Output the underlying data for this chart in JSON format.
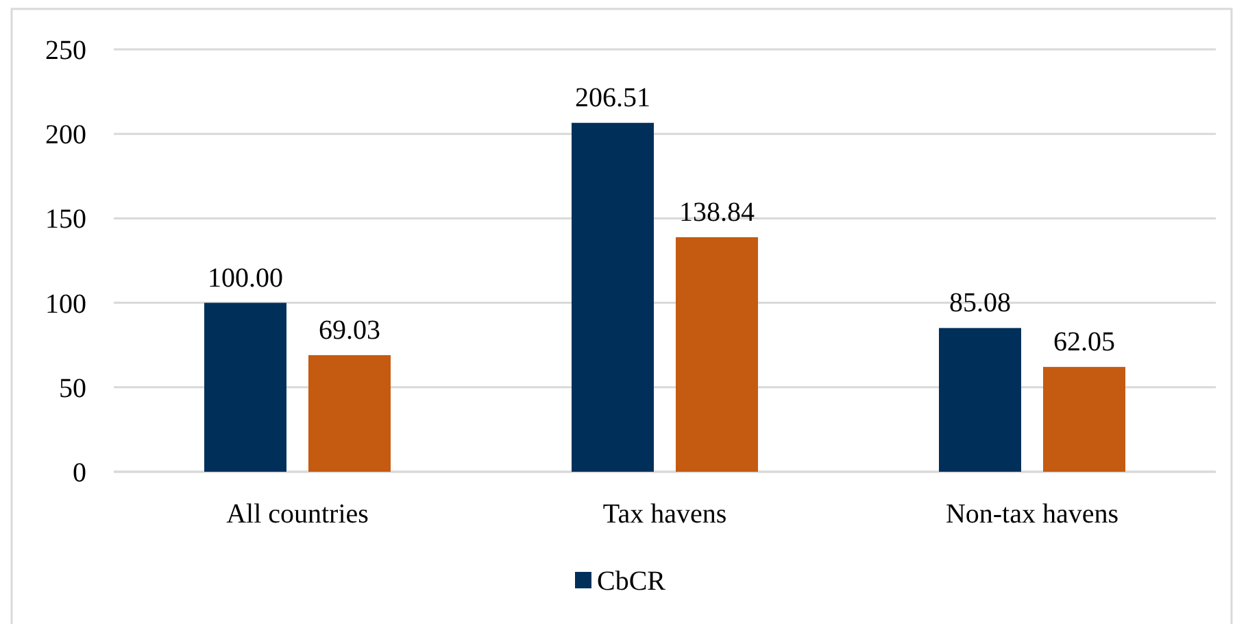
{
  "chart_data": {
    "type": "bar",
    "categories": [
      "All countries",
      "Tax havens",
      "Non-tax havens"
    ],
    "series": [
      {
        "name": "CbCR",
        "color": "#00305a",
        "values": [
          100,
          206.51,
          85.08
        ],
        "value_labels": [
          "100.00",
          "206.51",
          "85.08"
        ]
      },
      {
        "color": "#c55a11",
        "values": [
          69.03,
          138.84,
          62.05
        ],
        "value_labels": [
          "69.03",
          "138.84",
          "62.05"
        ]
      }
    ],
    "ylim": [
      0,
      250
    ],
    "yticks": [
      0,
      50,
      100,
      150,
      200,
      250
    ],
    "grid": "y",
    "legend": "bottom"
  }
}
